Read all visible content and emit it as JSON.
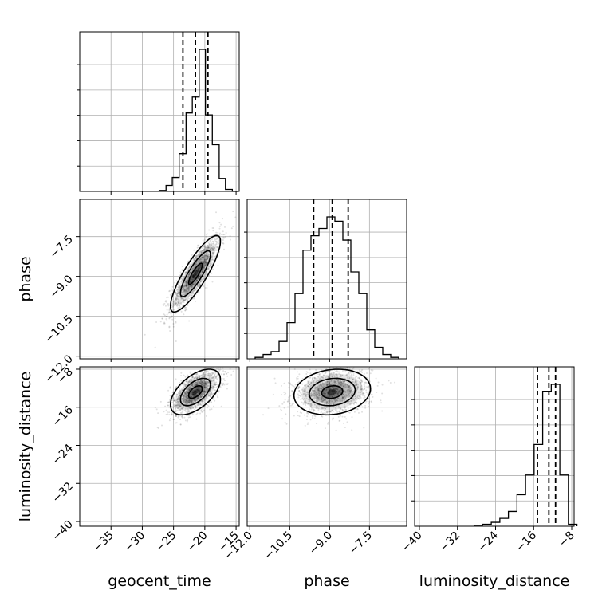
{
  "chart_data": {
    "type": "corner",
    "parameters": [
      "geocent_time",
      "phase",
      "luminosity_distance"
    ],
    "axis_labels": {
      "x": [
        "geocent_time",
        "phase",
        "luminosity_distance"
      ],
      "y": [
        "phase",
        "luminosity_distance"
      ]
    },
    "ranges": {
      "geocent_time": [
        -40,
        -14.5
      ],
      "phase": [
        -12.1,
        -6.1
      ],
      "luminosity_distance": [
        -41,
        -7.5
      ]
    },
    "ticks": {
      "geocent_time": [
        -35,
        -30,
        -25,
        -20,
        -15
      ],
      "phase": [
        -12.0,
        -10.5,
        -9.0,
        -7.5
      ],
      "luminosity_distance": [
        -40,
        -32,
        -24,
        -16,
        -8
      ]
    },
    "tick_labels": {
      "geocent_time": [
        "−35",
        "−30",
        "−25",
        "−20",
        "−15"
      ],
      "phase": [
        "−12.0",
        "−10.5",
        "−9.0",
        "−7.5"
      ],
      "luminosity_distance": [
        "−40",
        "−32",
        "−24",
        "−16",
        "−8"
      ]
    },
    "quantiles": {
      "geocent_time": [
        -23.5,
        -21.5,
        -19.5
      ],
      "phase": [
        -9.6,
        -8.9,
        -8.3
      ],
      "luminosity_distance": [
        -15.2,
        -12.8,
        -11.4
      ]
    },
    "histograms": {
      "geocent_time": {
        "edges": [
          -27.3,
          -26.2,
          -25.2,
          -24.1,
          -23.0,
          -22.0,
          -20.9,
          -19.9,
          -18.8,
          -17.7,
          -16.7,
          -15.6,
          -14.6
        ],
        "counts": [
          1,
          6,
          14,
          38,
          79,
          95,
          143,
          77,
          47,
          13,
          2,
          0
        ]
      },
      "phase": {
        "edges": [
          -11.8,
          -11.5,
          -11.2,
          -10.9,
          -10.6,
          -10.3,
          -10.0,
          -9.7,
          -9.4,
          -9.1,
          -8.8,
          -8.5,
          -8.2,
          -7.9,
          -7.6,
          -7.3,
          -7.0,
          -6.7,
          -6.4
        ],
        "counts": [
          1,
          3,
          5,
          12,
          25,
          45,
          75,
          85,
          90,
          98,
          95,
          82,
          60,
          45,
          20,
          8,
          3,
          1
        ]
      },
      "luminosity_distance": {
        "edges": [
          -28.5,
          -26.7,
          -24.9,
          -23.1,
          -21.3,
          -19.5,
          -17.7,
          -15.9,
          -14.1,
          -12.3,
          -10.5,
          -8.7,
          -6.9
        ],
        "counts": [
          1,
          2,
          4,
          8,
          15,
          32,
          52,
          83,
          137,
          144,
          52,
          2
        ]
      }
    },
    "joint": [
      {
        "x": "geocent_time",
        "y": "phase",
        "mean": [
          -21.5,
          -8.9
        ],
        "sd": [
          2.0,
          0.72
        ],
        "corr": 0.85
      },
      {
        "x": "geocent_time",
        "y": "luminosity_distance",
        "mean": [
          -21.5,
          -12.8
        ],
        "sd": [
          2.0,
          2.4
        ],
        "corr": 0.55
      },
      {
        "x": "phase",
        "y": "luminosity_distance",
        "mean": [
          -8.9,
          -12.8
        ],
        "sd": [
          0.72,
          2.4
        ],
        "corr": 0.15
      }
    ],
    "grid": true,
    "color": "#000000"
  }
}
